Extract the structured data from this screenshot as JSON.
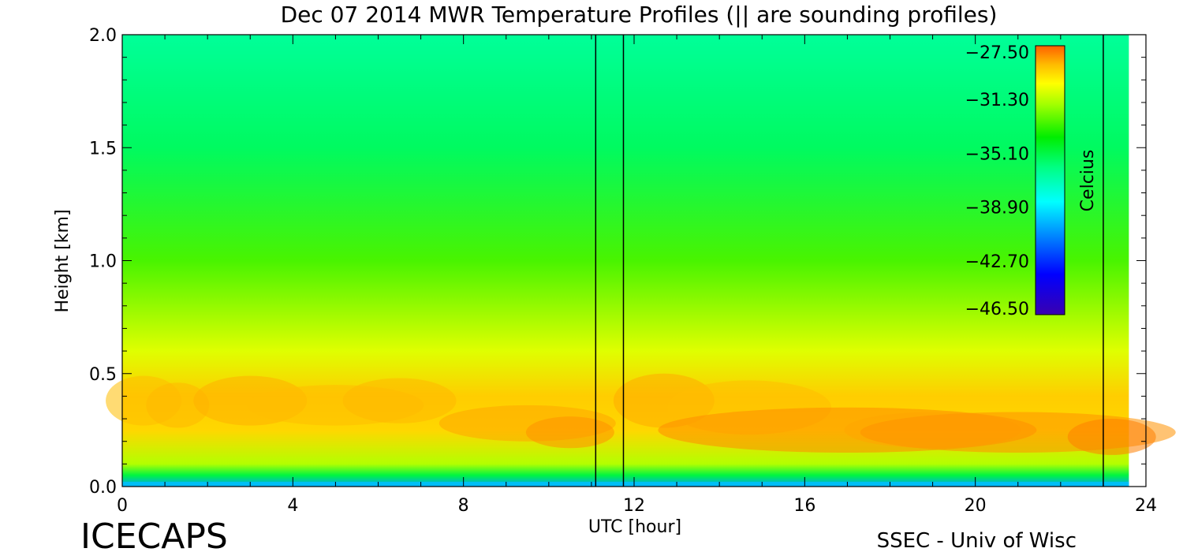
{
  "chart_data": {
    "type": "heatmap",
    "title": "Dec 07 2014 MWR Temperature Profiles (|| are sounding profiles)",
    "xlabel": "UTC [hour]",
    "ylabel": "Height [km]",
    "xlim": [
      0,
      24
    ],
    "ylim": [
      0,
      2.0
    ],
    "x_ticks": [
      "0",
      "4",
      "8",
      "12",
      "16",
      "20",
      "24"
    ],
    "y_ticks": [
      "0.0",
      "0.5",
      "1.0",
      "1.5",
      "2.0"
    ],
    "colorbar": {
      "label": "Celcius",
      "ticks": [
        "-27.50",
        "-31.30",
        "-35.10",
        "-38.90",
        "-42.70",
        "-46.50"
      ],
      "range": [
        -46.5,
        -27.5
      ]
    },
    "sounding_profile_times_hour": [
      11.1,
      11.75,
      23.0
    ],
    "data_end_hour": 23.6,
    "approx_profiles": [
      {
        "height_km": 0.0,
        "temp_c": -40.5
      },
      {
        "height_km": 0.05,
        "temp_c": -35.0
      },
      {
        "height_km": 0.1,
        "temp_c": -31.5
      },
      {
        "height_km": 0.25,
        "temp_c": -29.5
      },
      {
        "height_km": 0.4,
        "temp_c": -29.3
      },
      {
        "height_km": 0.6,
        "temp_c": -30.8
      },
      {
        "height_km": 1.0,
        "temp_c": -33.0
      },
      {
        "height_km": 1.5,
        "temp_c": -35.5
      },
      {
        "height_km": 2.0,
        "temp_c": -36.5
      }
    ]
  },
  "footer": {
    "left": "ICECAPS",
    "right": "SSEC - Univ of Wisc"
  }
}
